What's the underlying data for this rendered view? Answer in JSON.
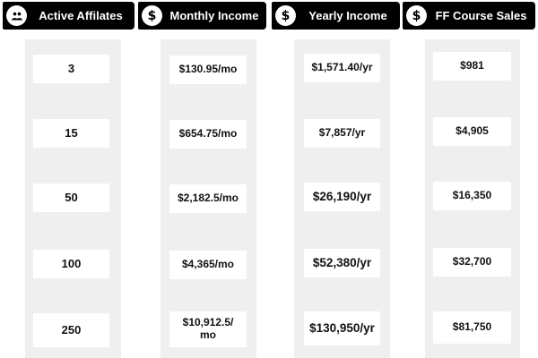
{
  "columns": [
    {
      "title": "Active Affilates",
      "icon": "people-icon",
      "values": [
        "3",
        "15",
        "50",
        "100",
        "250"
      ]
    },
    {
      "title": "Monthly Income",
      "icon": "dollar-icon",
      "values": [
        "$130.95/mo",
        "$654.75/mo",
        "$2,182.5/mo",
        "$4,365/mo",
        "$10,912.5/ mo"
      ]
    },
    {
      "title": "Yearly Income",
      "icon": "dollar-icon",
      "values": [
        "$1,571.40/yr",
        "$7,857/yr",
        "$26,190/yr",
        "$52,380/yr",
        "$130,950/yr"
      ]
    },
    {
      "title": "FF Course Sales",
      "icon": "dollar-icon",
      "values": [
        "$981",
        "$4,905",
        "$16,350",
        "$32,700",
        "$81,750"
      ]
    }
  ],
  "icons": {
    "dollar_glyph": "$"
  },
  "colors": {
    "header_bg": "#000000",
    "header_text": "#ffffff",
    "panel_bg": "#efefef",
    "cell_bg": "#ffffff",
    "value_text": "#111111"
  }
}
